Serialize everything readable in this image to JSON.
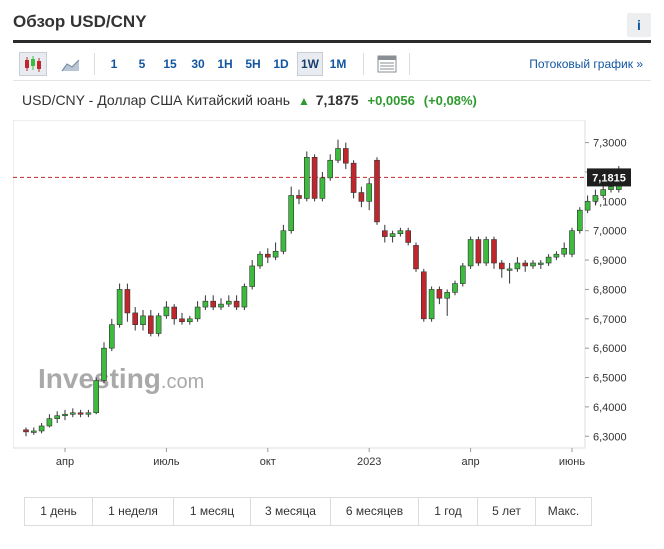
{
  "header": {
    "title": "Обзор USD/CNY",
    "info_label": "i"
  },
  "toolbar": {
    "chart_type_icon": "candlestick-icon",
    "area_icon": "area-chart-icon",
    "intervals": [
      "1",
      "5",
      "15",
      "30",
      "1H",
      "5H",
      "1D",
      "1W",
      "1M"
    ],
    "selected_interval": "1W",
    "settings_icon": "table-icon",
    "stream_label": "Потоковый график »"
  },
  "quote": {
    "instrument": "USD/CNY - Доллар США Китайский юань",
    "direction_icon": "up-arrow-icon",
    "price": "7,1875",
    "change": "+0,0056",
    "change_pct": "(+0,08%)",
    "up_color": "#2e9a2e"
  },
  "ranges": [
    "1 день",
    "1 неделя",
    "1 месяц",
    "3 месяца",
    "6 месяцев",
    "1 год",
    "5 лет",
    "Макс."
  ],
  "chart_data": {
    "type": "candlestick",
    "watermark": {
      "brand": "Investing",
      "suffix": ".com"
    },
    "ylim": [
      6.26,
      7.36
    ],
    "yticks": [
      6.3,
      6.4,
      6.5,
      6.6,
      6.7,
      6.8,
      6.9,
      7.0,
      7.1,
      7.2,
      7.3
    ],
    "ytick_labels": [
      "6,3000",
      "6,4000",
      "6,5000",
      "6,6000",
      "6,7000",
      "6,8000",
      "6,9000",
      "7,0000",
      "7,1000",
      "7,2000",
      "7,3000"
    ],
    "xticks": [
      {
        "index": 5,
        "label": "апр"
      },
      {
        "index": 18,
        "label": "июль"
      },
      {
        "index": 31,
        "label": "окт"
      },
      {
        "index": 44,
        "label": "2023"
      },
      {
        "index": 57,
        "label": "апр"
      },
      {
        "index": 70,
        "label": "июнь"
      }
    ],
    "last_price": 7.1815,
    "last_price_label": "7,1815",
    "up_color": "#3dbb3d",
    "down_color": "#c0272d",
    "candles": [
      [
        6.322,
        6.315,
        6.33,
        6.3
      ],
      [
        6.315,
        6.318,
        6.33,
        6.305
      ],
      [
        6.318,
        6.335,
        6.345,
        6.31
      ],
      [
        6.335,
        6.36,
        6.375,
        6.33
      ],
      [
        6.36,
        6.37,
        6.385,
        6.345
      ],
      [
        6.37,
        6.375,
        6.39,
        6.355
      ],
      [
        6.375,
        6.38,
        6.395,
        6.365
      ],
      [
        6.38,
        6.375,
        6.39,
        6.365
      ],
      [
        6.375,
        6.38,
        6.39,
        6.365
      ],
      [
        6.38,
        6.49,
        6.5,
        6.375
      ],
      [
        6.49,
        6.6,
        6.62,
        6.48
      ],
      [
        6.6,
        6.68,
        6.7,
        6.59
      ],
      [
        6.68,
        6.8,
        6.82,
        6.67
      ],
      [
        6.8,
        6.72,
        6.82,
        6.69
      ],
      [
        6.72,
        6.68,
        6.74,
        6.66
      ],
      [
        6.68,
        6.71,
        6.73,
        6.66
      ],
      [
        6.71,
        6.65,
        6.73,
        6.64
      ],
      [
        6.65,
        6.71,
        6.72,
        6.64
      ],
      [
        6.71,
        6.74,
        6.76,
        6.7
      ],
      [
        6.74,
        6.7,
        6.75,
        6.68
      ],
      [
        6.7,
        6.69,
        6.72,
        6.68
      ],
      [
        6.69,
        6.7,
        6.71,
        6.68
      ],
      [
        6.7,
        6.74,
        6.76,
        6.69
      ],
      [
        6.74,
        6.76,
        6.78,
        6.73
      ],
      [
        6.76,
        6.74,
        6.78,
        6.73
      ],
      [
        6.74,
        6.75,
        6.77,
        6.73
      ],
      [
        6.75,
        6.76,
        6.78,
        6.74
      ],
      [
        6.76,
        6.74,
        6.78,
        6.73
      ],
      [
        6.74,
        6.81,
        6.82,
        6.73
      ],
      [
        6.81,
        6.88,
        6.9,
        6.8
      ],
      [
        6.88,
        6.92,
        6.93,
        6.87
      ],
      [
        6.92,
        6.91,
        6.94,
        6.89
      ],
      [
        6.91,
        6.93,
        6.96,
        6.9
      ],
      [
        6.93,
        7.0,
        7.02,
        6.92
      ],
      [
        7.0,
        7.12,
        7.15,
        6.99
      ],
      [
        7.12,
        7.11,
        7.14,
        7.09
      ],
      [
        7.11,
        7.25,
        7.27,
        7.1
      ],
      [
        7.25,
        7.11,
        7.26,
        7.1
      ],
      [
        7.11,
        7.18,
        7.2,
        7.1
      ],
      [
        7.18,
        7.24,
        7.26,
        7.17
      ],
      [
        7.24,
        7.28,
        7.31,
        7.23
      ],
      [
        7.28,
        7.23,
        7.3,
        7.21
      ],
      [
        7.23,
        7.13,
        7.24,
        7.11
      ],
      [
        7.13,
        7.1,
        7.15,
        7.08
      ],
      [
        7.1,
        7.16,
        7.18,
        7.07
      ],
      [
        7.24,
        7.03,
        7.25,
        7.02
      ],
      [
        7.0,
        6.98,
        7.02,
        6.96
      ],
      [
        6.98,
        6.99,
        7.0,
        6.96
      ],
      [
        6.99,
        7.0,
        7.01,
        6.98
      ],
      [
        7.0,
        6.96,
        7.01,
        6.95
      ],
      [
        6.95,
        6.87,
        6.96,
        6.86
      ],
      [
        6.86,
        6.7,
        6.87,
        6.69
      ],
      [
        6.7,
        6.8,
        6.81,
        6.69
      ],
      [
        6.8,
        6.77,
        6.81,
        6.75
      ],
      [
        6.77,
        6.79,
        6.8,
        6.71
      ],
      [
        6.79,
        6.82,
        6.83,
        6.78
      ],
      [
        6.82,
        6.88,
        6.89,
        6.81
      ],
      [
        6.88,
        6.97,
        6.98,
        6.87
      ],
      [
        6.97,
        6.89,
        6.98,
        6.88
      ],
      [
        6.89,
        6.97,
        6.98,
        6.88
      ],
      [
        6.97,
        6.89,
        6.98,
        6.87
      ],
      [
        6.89,
        6.87,
        6.9,
        6.84
      ],
      [
        6.87,
        6.87,
        6.89,
        6.82
      ],
      [
        6.87,
        6.89,
        6.91,
        6.86
      ],
      [
        6.89,
        6.88,
        6.9,
        6.86
      ],
      [
        6.88,
        6.89,
        6.9,
        6.87
      ],
      [
        6.89,
        6.89,
        6.9,
        6.87
      ],
      [
        6.89,
        6.91,
        6.92,
        6.88
      ],
      [
        6.91,
        6.92,
        6.93,
        6.9
      ],
      [
        6.92,
        6.94,
        6.96,
        6.91
      ],
      [
        6.92,
        7.0,
        7.01,
        6.91
      ],
      [
        7.0,
        7.07,
        7.08,
        6.99
      ],
      [
        7.07,
        7.1,
        7.12,
        7.06
      ],
      [
        7.1,
        7.12,
        7.14,
        7.09
      ],
      [
        7.12,
        7.14,
        7.16,
        7.11
      ],
      [
        7.14,
        7.15,
        7.17,
        7.13
      ],
      [
        7.14,
        7.2,
        7.22,
        7.13
      ]
    ]
  }
}
